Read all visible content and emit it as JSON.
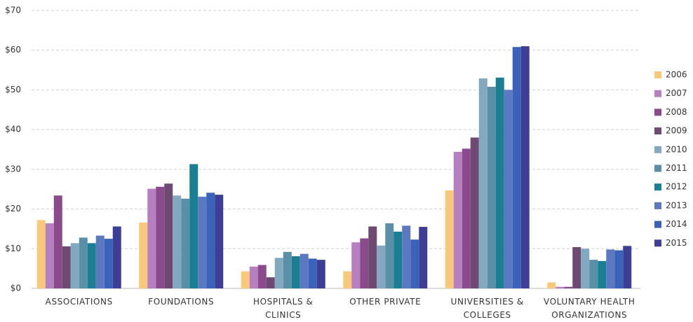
{
  "chart_data": {
    "type": "bar",
    "categories": [
      "ASSOCIATIONS",
      "FOUNDATIONS",
      "HOSPITALS & CLINICS",
      "OTHER PRIVATE",
      "UNIVERSITIES & COLLEGES",
      "VOLUNTARY HEALTH ORGANIZATIONS"
    ],
    "series": [
      {
        "name": "2006",
        "color": "#f9c97a",
        "values": [
          17.2,
          16.6,
          4.3,
          4.3,
          24.7,
          1.5
        ]
      },
      {
        "name": "2007",
        "color": "#b57fc0",
        "values": [
          16.4,
          25.1,
          5.5,
          11.6,
          34.4,
          0.4
        ]
      },
      {
        "name": "2008",
        "color": "#8a4a8c",
        "values": [
          23.4,
          25.6,
          5.9,
          12.6,
          35.2,
          0.4
        ]
      },
      {
        "name": "2009",
        "color": "#6e4a72",
        "values": [
          10.6,
          26.4,
          2.8,
          15.6,
          38.0,
          10.4
        ]
      },
      {
        "name": "2010",
        "color": "#82a9bf",
        "values": [
          11.4,
          23.4,
          7.7,
          10.8,
          52.9,
          10.0
        ]
      },
      {
        "name": "2011",
        "color": "#5a8fa8",
        "values": [
          12.8,
          22.6,
          9.2,
          16.4,
          50.8,
          7.2
        ]
      },
      {
        "name": "2012",
        "color": "#1a7f93",
        "values": [
          11.4,
          31.3,
          8.1,
          14.3,
          53.1,
          6.9
        ]
      },
      {
        "name": "2013",
        "color": "#5b78c0",
        "values": [
          13.3,
          23.1,
          8.7,
          15.8,
          50.0,
          9.8
        ]
      },
      {
        "name": "2014",
        "color": "#3a62b8",
        "values": [
          12.5,
          24.1,
          7.5,
          12.3,
          60.8,
          9.6
        ]
      },
      {
        "name": "2015",
        "color": "#3c3f95",
        "values": [
          15.6,
          23.6,
          7.2,
          15.5,
          61.0,
          10.7
        ]
      }
    ],
    "ylim": [
      0,
      70
    ],
    "yticks": [
      {
        "value": 0,
        "label": "$0"
      },
      {
        "value": 10,
        "label": "$10"
      },
      {
        "value": 20,
        "label": "$20"
      },
      {
        "value": 30,
        "label": "$30"
      },
      {
        "value": 40,
        "label": "$40"
      },
      {
        "value": 50,
        "label": "$50"
      },
      {
        "value": 60,
        "label": "$60"
      },
      {
        "value": 70,
        "label": "$70"
      }
    ],
    "grid": true,
    "legend": "right"
  }
}
